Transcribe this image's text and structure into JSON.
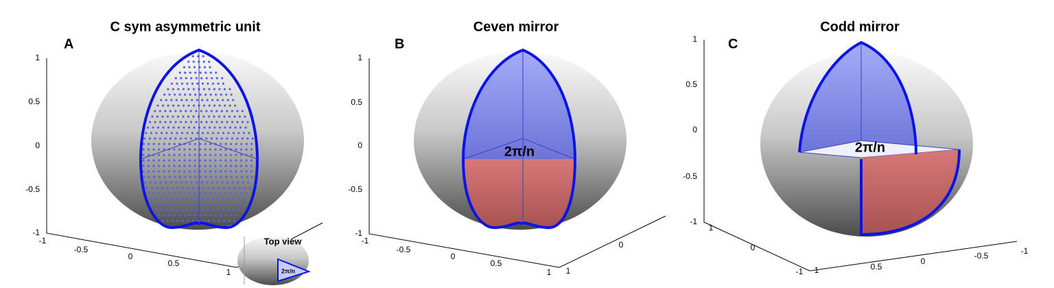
{
  "panels": [
    {
      "letter": "A",
      "title": "C sym asymmetric unit",
      "z_ticks": [
        "1",
        "0.5",
        "0",
        "-0.5",
        "-1"
      ],
      "x_ticks": [
        "-1",
        "-0.5",
        "0",
        "0.5",
        "1"
      ],
      "y_ticks": []
    },
    {
      "letter": "B",
      "title": "Ceven mirror",
      "angle_label": "2π/n",
      "z_ticks": [
        "1",
        "0.5",
        "0",
        "-0.5",
        "-1"
      ],
      "x_ticks": [
        "-1",
        "-0.5",
        "0",
        "0.5",
        "1"
      ],
      "y_ticks": [
        "1",
        "0"
      ]
    },
    {
      "letter": "C",
      "title": "Codd mirror",
      "angle_label": "2π/n",
      "z_ticks": [
        "1",
        "0.5",
        "0",
        "-0.5",
        "-1"
      ],
      "x_ticks": [
        "1",
        "0",
        "-1"
      ],
      "y_ticks": [
        "1",
        "0.5",
        "0",
        "-0.5",
        "-1"
      ]
    }
  ],
  "inset": {
    "title": "Top view",
    "label": "2π/n"
  }
}
